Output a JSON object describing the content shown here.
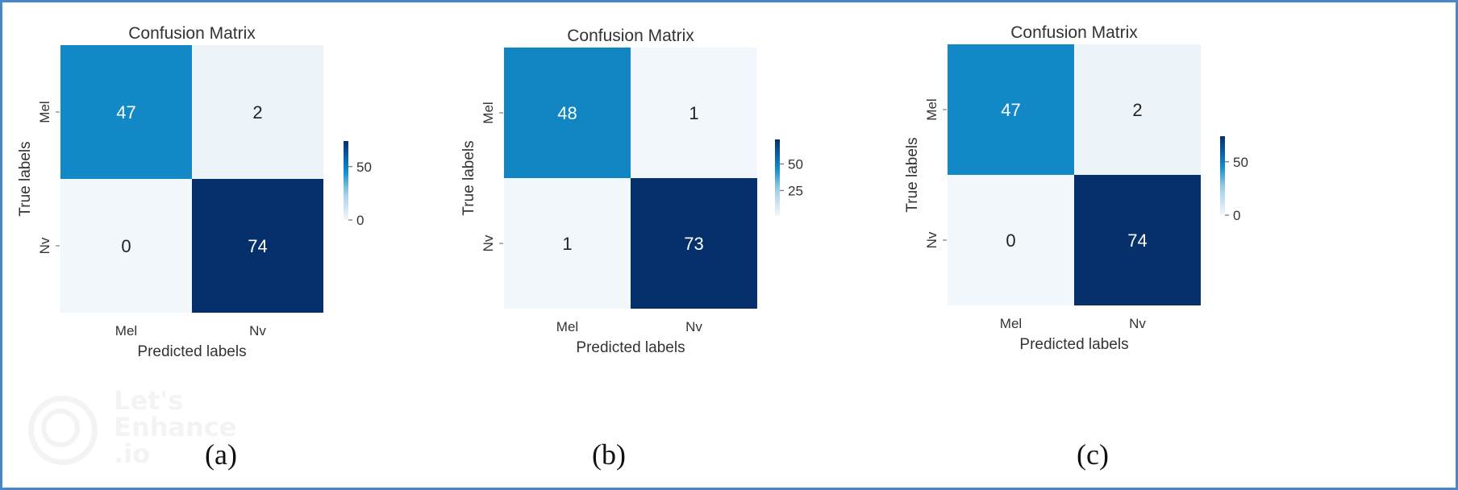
{
  "chart_data": [
    {
      "type": "heatmap",
      "title": "Confusion Matrix",
      "xlabel": "Predicted labels",
      "ylabel": "True labels",
      "x_categories": [
        "Mel",
        "Nv"
      ],
      "y_categories": [
        "Mel",
        "Nv"
      ],
      "values": [
        [
          47,
          2
        ],
        [
          0,
          74
        ]
      ],
      "colorbar": {
        "range": [
          0,
          74
        ],
        "ticks": [
          0,
          50
        ],
        "colormap": "Blues"
      },
      "caption": "(a)"
    },
    {
      "type": "heatmap",
      "title": "Confusion Matrix",
      "xlabel": "Predicted labels",
      "ylabel": "True labels",
      "x_categories": [
        "Mel",
        "Nv"
      ],
      "y_categories": [
        "Mel",
        "Nv"
      ],
      "values": [
        [
          48,
          1
        ],
        [
          1,
          73
        ]
      ],
      "colorbar": {
        "range": [
          1,
          73
        ],
        "ticks": [
          25,
          50
        ],
        "colormap": "Blues"
      },
      "caption": "(b)"
    },
    {
      "type": "heatmap",
      "title": "Confusion Matrix",
      "xlabel": "Predicted labels",
      "ylabel": "True labels",
      "x_categories": [
        "Mel",
        "Nv"
      ],
      "y_categories": [
        "Mel",
        "Nv"
      ],
      "values": [
        [
          47,
          2
        ],
        [
          0,
          74
        ]
      ],
      "colorbar": {
        "range": [
          0,
          74
        ],
        "ticks": [
          0,
          50
        ],
        "colormap": "Blues"
      },
      "caption": "(c)"
    }
  ],
  "watermark": {
    "text": "Let's\nEnhance\n.io"
  },
  "colors": {
    "frame": "#4a86c8",
    "low": "#f2f7fc",
    "high": "#08306b"
  }
}
